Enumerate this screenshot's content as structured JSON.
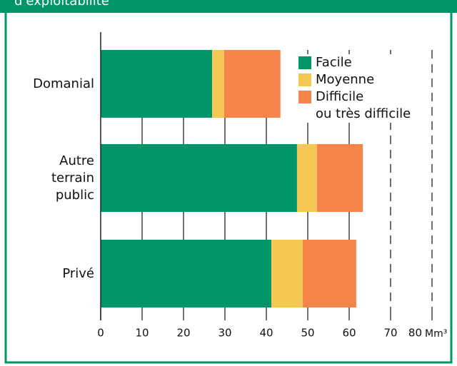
{
  "chart_data": {
    "type": "stacked_barh",
    "title": "d'exploitabilité",
    "categories": [
      "Domanial",
      "Autre\nterrain\npublic",
      "Privé"
    ],
    "series": [
      {
        "name": "Facile",
        "color": "#00966a",
        "values": [
          26.9,
          47.4,
          41.2
        ]
      },
      {
        "name": "Moyenne",
        "color": "#f5c855",
        "values": [
          2.9,
          4.8,
          7.6
        ]
      },
      {
        "name": "Difficile\nou très difficile",
        "color": "#f5844a",
        "values": [
          13.6,
          11.1,
          12.9
        ]
      }
    ],
    "xlabel": "Mm³",
    "xlim": [
      0,
      80
    ],
    "xticks": [
      0,
      10,
      20,
      30,
      40,
      50,
      60,
      70,
      80
    ],
    "grid": true,
    "legend": "upper right"
  }
}
